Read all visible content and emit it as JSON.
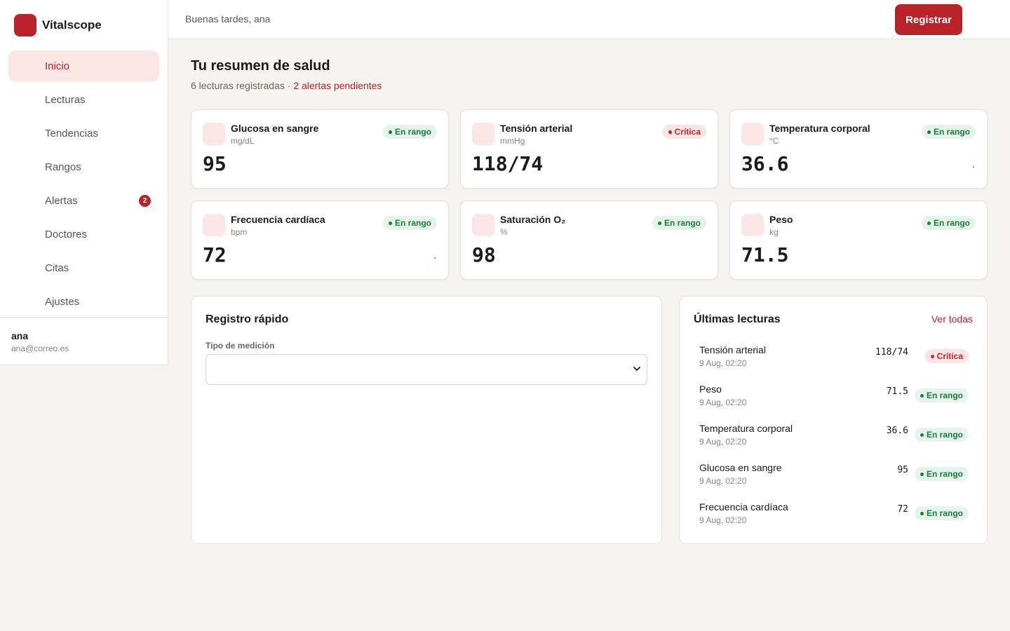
{
  "app": {
    "name": "Vitalscope"
  },
  "sidebar": {
    "items": [
      {
        "label": "Inicio",
        "active": true
      },
      {
        "label": "Lecturas"
      },
      {
        "label": "Tendencias"
      },
      {
        "label": "Rangos"
      },
      {
        "label": "Alertas",
        "badge": "2"
      },
      {
        "label": "Doctores"
      },
      {
        "label": "Citas"
      },
      {
        "label": "Ajustes"
      }
    ],
    "user": {
      "name": "ana",
      "email": "ana@correo.es"
    }
  },
  "topbar": {
    "greeting": "Buenas tardes, ana",
    "primary_button": "Registrar"
  },
  "summary": {
    "title": "Tu resumen de salud",
    "count_text": "6 lecturas registradas · ",
    "alerts_text": "2 alertas pendientes"
  },
  "metrics": [
    {
      "title": "Glucosa en sangre",
      "unit": "mg/dL",
      "value": "95",
      "status": "En rango",
      "status_type": "ok"
    },
    {
      "title": "Tensión arterial",
      "unit": "mmHg",
      "value": "118/74",
      "status": "Crítica",
      "status_type": "crit"
    },
    {
      "title": "Temperatura corporal",
      "unit": "°C",
      "value": "36.6",
      "status": "En rango",
      "status_type": "ok"
    },
    {
      "title": "Frecuencia cardíaca",
      "unit": "bpm",
      "value": "72",
      "status": "En rango",
      "status_type": "ok"
    },
    {
      "title": "Saturación O₂",
      "unit": "%",
      "value": "98",
      "status": "En rango",
      "status_type": "ok"
    },
    {
      "title": "Peso",
      "unit": "kg",
      "value": "71.5",
      "status": "En rango",
      "status_type": "ok"
    }
  ],
  "quick_log": {
    "title": "Registro rápido",
    "field_label": "Tipo de medición",
    "selected": ""
  },
  "latest": {
    "title": "Últimas lecturas",
    "see_all": "Ver todas",
    "rows": [
      {
        "name": "Tensión arterial",
        "time": "9 Aug, 02:20",
        "value": "118/74",
        "status": "Crítica",
        "status_type": "crit"
      },
      {
        "name": "Peso",
        "time": "9 Aug, 02:20",
        "value": "71.5",
        "status": "En rango",
        "status_type": "ok"
      },
      {
        "name": "Temperatura corporal",
        "time": "9 Aug, 02:20",
        "value": "36.6",
        "status": "En rango",
        "status_type": "ok"
      },
      {
        "name": "Glucosa en sangre",
        "time": "9 Aug, 02:20",
        "value": "95",
        "status": "En rango",
        "status_type": "ok"
      },
      {
        "name": "Frecuencia cardíaca",
        "time": "9 Aug, 02:20",
        "value": "72",
        "status": "En rango",
        "status_type": "ok"
      }
    ]
  },
  "colors": {
    "brand": "#b8232a",
    "ok": "#1e7a3c",
    "critical": "#c4262d",
    "background": "#f5f4f0"
  }
}
